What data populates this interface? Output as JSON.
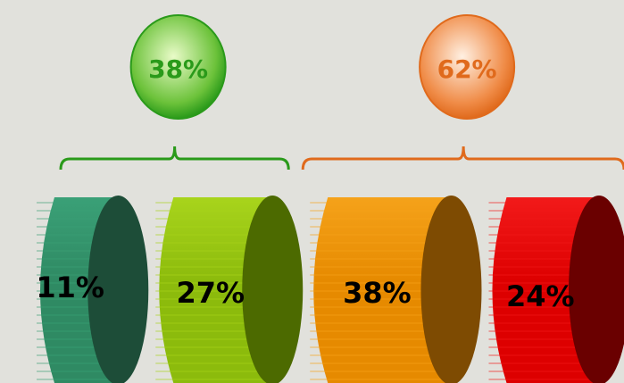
{
  "chart_data": {
    "type": "bar",
    "title": "",
    "groups": [
      {
        "total_label": "38%",
        "total": 38,
        "color": "#2a9a1a",
        "bubble_light": "#e9fbc8",
        "bubble_dark": "#6cc23a",
        "segments": [
          0,
          1
        ]
      },
      {
        "total_label": "62%",
        "total": 62,
        "color": "#e06a1c",
        "bubble_light": "#fff0e2",
        "bubble_dark": "#f08c48",
        "segments": [
          2,
          3
        ]
      }
    ],
    "segments": [
      {
        "label": "11%",
        "value": 11,
        "front": "#2f8a63",
        "side": "#1d4d38",
        "stripe": "#3aa077"
      },
      {
        "label": "27%",
        "value": 27,
        "front": "#8cbb0c",
        "side": "#4c6a00",
        "stripe": "#a8d41c"
      },
      {
        "label": "38%",
        "value": 38,
        "front": "#e68a00",
        "side": "#7e4b02",
        "stripe": "#f5a21a"
      },
      {
        "label": "24%",
        "value": 24,
        "front": "#dd0000",
        "side": "#6a0000",
        "stripe": "#f21a1a"
      }
    ]
  }
}
